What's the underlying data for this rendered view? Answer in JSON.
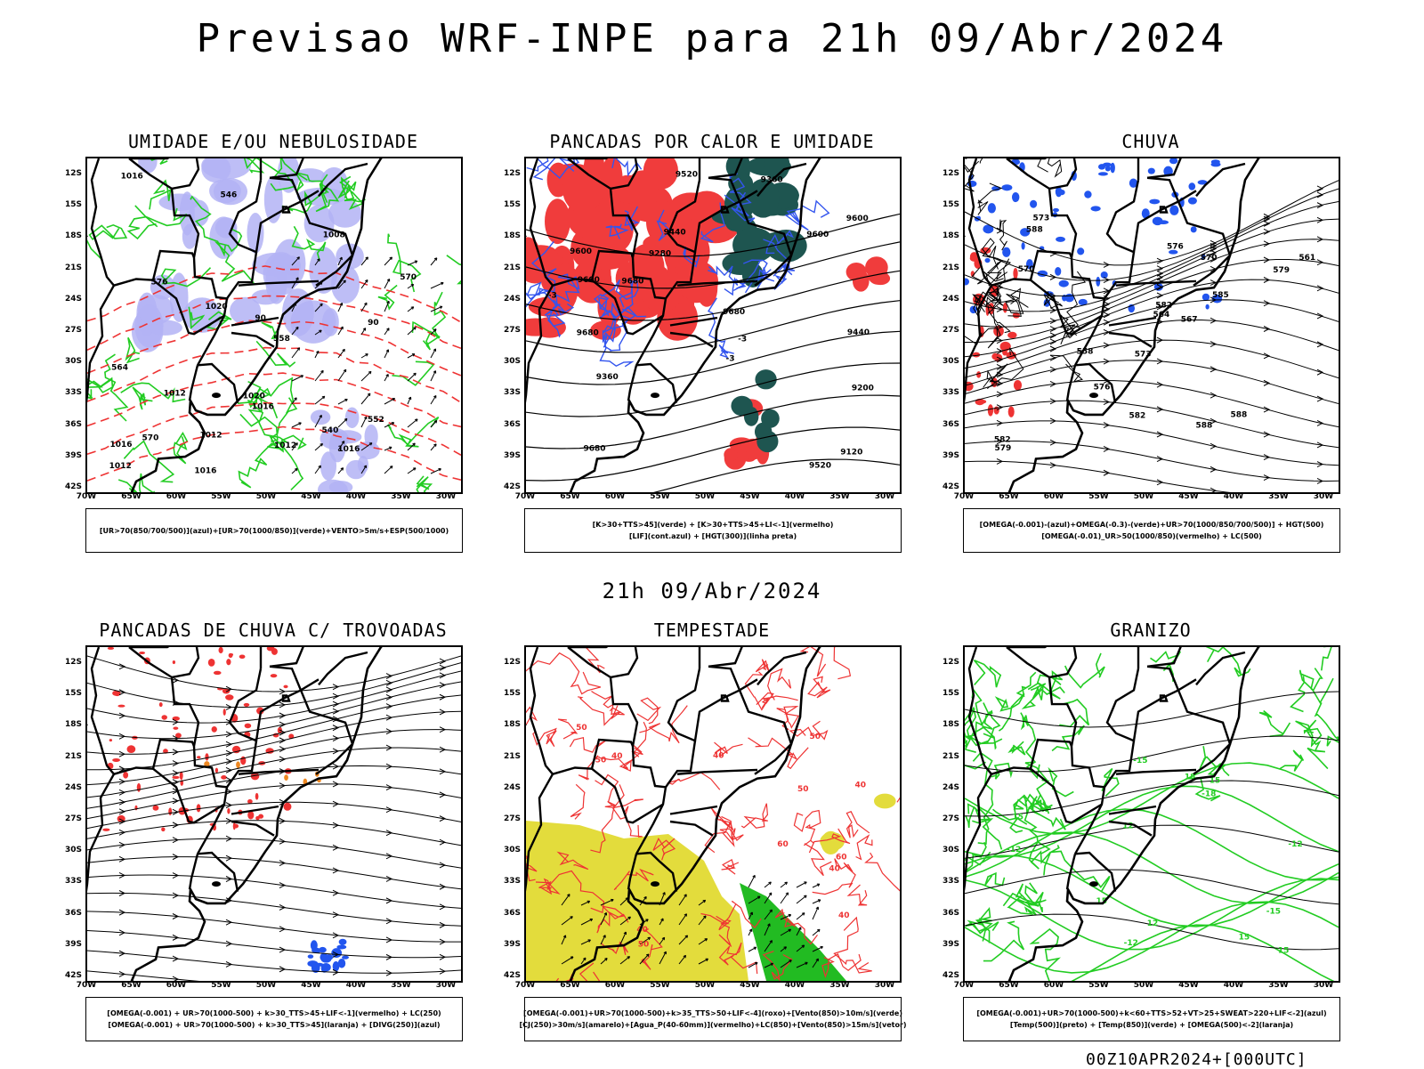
{
  "title": "Previsao WRF-INPE  para 21h 09/Abr/2024",
  "mid_title": "21h 09/Abr/2024",
  "footer": "00Z10APR2024+[000UTC]",
  "lat_labels": [
    "12S",
    "15S",
    "18S",
    "21S",
    "24S",
    "27S",
    "30S",
    "33S",
    "36S",
    "39S",
    "42S"
  ],
  "lon_labels": [
    "70W",
    "65W",
    "60W",
    "55W",
    "50W",
    "45W",
    "40W",
    "35W",
    "30W"
  ],
  "panels": [
    {
      "title": "UMIDADE E/OU NEBULOSIDADE",
      "legend": [
        "[UR>70(850/700/500)](azul)+[UR>70(1000/850)](verde)+VENTO>5m/s+ESP(500/1000)"
      ],
      "colors": {
        "area": "#b3b3f5",
        "line": "#22cc22",
        "dash": "#ee3333"
      },
      "contour_labels": [
        "1012",
        "1012",
        "1012",
        "1008",
        "1016",
        "1016",
        "1016",
        "1016",
        "1020",
        "1020",
        "1012",
        "1016",
        "570",
        "570",
        "576",
        "564",
        "558",
        "552",
        "546",
        "540",
        "90",
        "90"
      ]
    },
    {
      "title": "PANCADAS POR CALOR E UMIDADE",
      "legend": [
        "[K>30+TTS>45](verde) + [K>30+TTS>45+LI<-1](vermelho)",
        "[LIF](cont.azul) + [HGT(300)](linha preta)"
      ],
      "colors": {
        "red": "#f03c3c",
        "green": "#1e5550",
        "blue": "#3355ee"
      },
      "contour_labels": [
        "9680",
        "9680",
        "9680",
        "9680",
        "9600",
        "9600",
        "9600",
        "9600",
        "9520",
        "9520",
        "9440",
        "9440",
        "9360",
        "9360",
        "9280",
        "9200",
        "9120",
        "-3",
        "-3",
        "-3"
      ]
    },
    {
      "title": "CHUVA",
      "legend": [
        "[OMEGA(-0.001)-(azul)+OMEGA(-0.3)-(verde)+UR>70(1000/850/700/500)] + HGT(500)",
        "[OMEGA(-0.01)_UR>50(1000/850)(vermelho) + LC(500)"
      ],
      "colors": {
        "blue": "#2255ee",
        "red": "#ee3333"
      },
      "contour_labels": [
        "588",
        "588",
        "588",
        "585",
        "582",
        "582",
        "582",
        "579",
        "579",
        "576",
        "576",
        "573",
        "573",
        "570",
        "570",
        "567",
        "564",
        "561",
        "558"
      ]
    },
    {
      "title": "PANCADAS DE CHUVA C/ TROVOADAS",
      "legend": [
        "[OMEGA(-0.001) + UR>70(1000-500) + k>30_TTS>45+LIF<-1](vermelho) + LC(250)",
        "[OMEGA(-0.001) + UR>70(1000-500) + k>30_TTS>45](laranja) + [DIVG(250)](azul)"
      ],
      "colors": {
        "red": "#ee3333",
        "blue": "#2255ee",
        "orange": "#ee8822"
      },
      "contour_labels": []
    },
    {
      "title": "TEMPESTADE",
      "legend": [
        "[OMEGA(-0.001)+UR>70(1000-500)+k>35_TTS>50+LIF<-4](roxo)+[Vento(850)>10m/s](verde)",
        "[CJ(250)>30m/s](amarelo)+[Agua_P(40-60mm)](vermelho)+LC(850)+[Vento(850)>15m/s](vetor)"
      ],
      "colors": {
        "yellow": "#e3dc3c",
        "green": "#22bb22",
        "red": "#ee3333"
      },
      "contour_labels": [
        "40",
        "40",
        "40",
        "40",
        "40",
        "40",
        "50",
        "50",
        "50",
        "50",
        "50",
        "60",
        "60"
      ]
    },
    {
      "title": "GRANIZO",
      "legend": [
        "[OMEGA(-0.001)+UR>70(1000-500)+k<60+TTS>52+VT>25+SWEAT>220+LIF<-2](azul)",
        "[Temp(500)](preto) + [Temp(850)](verde) + [OMEGA(500)<-2](laranja)"
      ],
      "colors": {
        "green": "#22cc22"
      },
      "contour_labels": [
        "18",
        "15",
        "15",
        "15",
        "15",
        "15",
        "12",
        "12",
        "-12",
        "-12",
        "-12",
        "-15",
        "-15",
        "-18"
      ]
    }
  ]
}
